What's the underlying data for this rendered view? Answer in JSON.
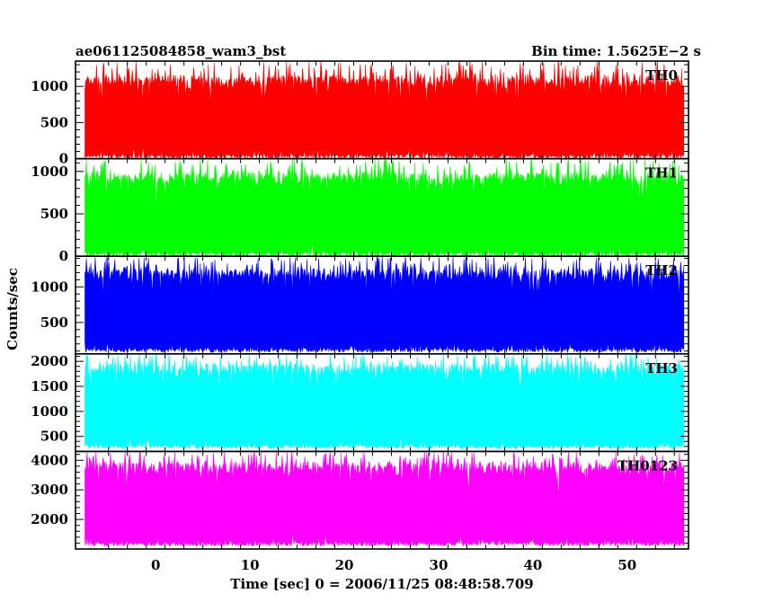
{
  "header": {
    "title": "ae061125084858_wam3_bst",
    "bin_time": "Bin time: 1.5625E−2 s"
  },
  "axes": {
    "ylabel": "Counts/sec",
    "xlabel": "Time [sec] 0 = 2006/11/25 08:48:58.709",
    "x_ticks": [
      "0",
      "10",
      "20",
      "30",
      "40",
      "50"
    ]
  },
  "chart_data": [
    {
      "type": "line",
      "name": "TH0",
      "color": "#ff0000",
      "xlim": [
        -8.5,
        56.5
      ],
      "ylim": [
        0,
        1350
      ],
      "data_xrange": [
        -7.5,
        56
      ],
      "yticks": [
        0,
        500,
        1000
      ],
      "ytick_labels": [
        "0",
        "500",
        "1000"
      ],
      "approx_level": {
        "low": 0,
        "high": 1050,
        "peak": 1350
      }
    },
    {
      "type": "line",
      "name": "TH1",
      "color": "#00ff00",
      "xlim": [
        -8.5,
        56.5
      ],
      "ylim": [
        0,
        1150
      ],
      "data_xrange": [
        -7.5,
        56
      ],
      "yticks": [
        0,
        500,
        1000
      ],
      "ytick_labels": [
        "0",
        "500",
        "1000"
      ],
      "approx_level": {
        "low": 0,
        "high": 900,
        "peak": 1150
      }
    },
    {
      "type": "line",
      "name": "TH2",
      "color": "#0000ff",
      "xlim": [
        -8.5,
        56.5
      ],
      "ylim": [
        60,
        1430
      ],
      "data_xrange": [
        -7.5,
        56
      ],
      "yticks": [
        500,
        1000
      ],
      "ytick_labels": [
        "500",
        "1000"
      ],
      "approx_level": {
        "low": 80,
        "high": 1150,
        "peak": 1430
      }
    },
    {
      "type": "line",
      "name": "TH3",
      "color": "#00ffff",
      "xlim": [
        -8.5,
        56.5
      ],
      "ylim": [
        200,
        2150
      ],
      "data_xrange": [
        -7.5,
        56
      ],
      "yticks": [
        500,
        1000,
        1500,
        2000
      ],
      "ytick_labels": [
        "500",
        "1000",
        "1500",
        "2000"
      ],
      "approx_level": {
        "low": 250,
        "high": 1800,
        "peak": 2150
      }
    },
    {
      "type": "line",
      "name": "TH0123",
      "color": "#ff00ff",
      "xlim": [
        -8.5,
        56.5
      ],
      "ylim": [
        1000,
        4300
      ],
      "data_xrange": [
        -7.5,
        56
      ],
      "yticks": [
        2000,
        3000,
        4000
      ],
      "ytick_labels": [
        "2000",
        "3000",
        "4000"
      ],
      "approx_level": {
        "low": 1100,
        "high": 3700,
        "peak": 4300
      }
    }
  ]
}
